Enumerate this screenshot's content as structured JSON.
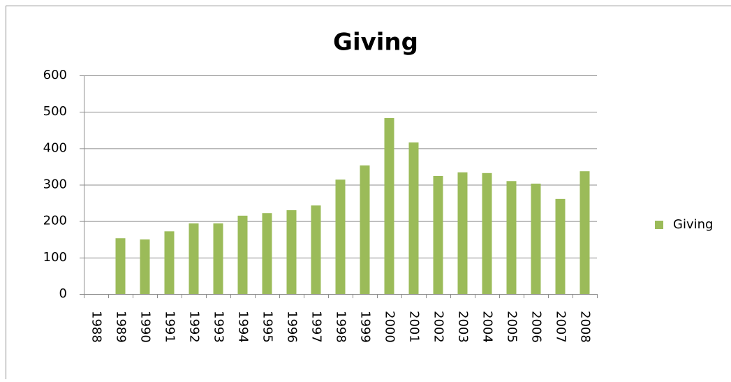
{
  "chart_data": {
    "type": "bar",
    "title": "Giving",
    "categories": [
      "1988",
      "1989",
      "1990",
      "1991",
      "1992",
      "1993",
      "1994",
      "1995",
      "1996",
      "1997",
      "1998",
      "1999",
      "2000",
      "2001",
      "2002",
      "2003",
      "2004",
      "2005",
      "2006",
      "2007",
      "2008"
    ],
    "series": [
      {
        "name": "Giving",
        "color": "#9bbb59",
        "values": [
          null,
          153,
          150,
          172,
          194,
          194,
          215,
          222,
          230,
          243,
          314,
          353,
          483,
          416,
          324,
          334,
          332,
          310,
          303,
          261,
          337
        ]
      }
    ],
    "ylim": [
      0,
      600
    ],
    "yticks": [
      0,
      100,
      200,
      300,
      400,
      500,
      600
    ],
    "grid": true,
    "legend": "right"
  }
}
